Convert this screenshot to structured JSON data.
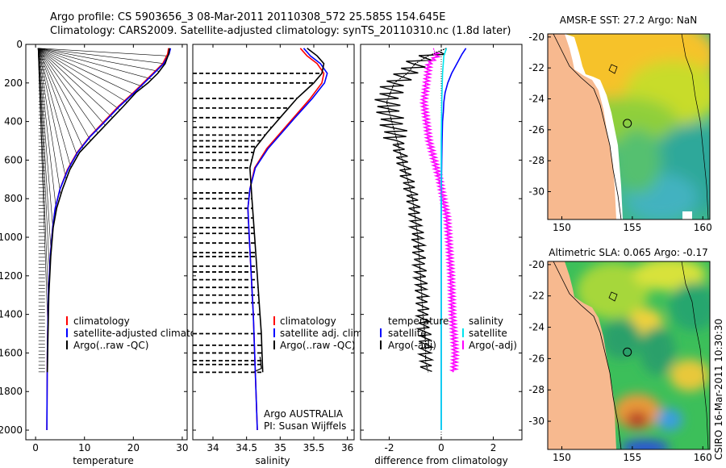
{
  "title": {
    "line1": "Argo profile: CS 5903656_3 08-Mar-2011 20110308_572 25.585S 154.645E",
    "line2": "Climatology: CARS2009. Satellite-adjusted climatology: synTS_20110310.nc (1.8d later)"
  },
  "side_label": "CSIRO 16-Mar-2011 10:30:30",
  "chart_data": [
    {
      "type": "line",
      "name": "temperature-profile",
      "xlabel": "temperature",
      "ylabel": "",
      "xlim": [
        -2,
        31
      ],
      "ylim": [
        2050,
        0
      ],
      "xticks": [
        0,
        10,
        20,
        30
      ],
      "yticks": [
        0,
        200,
        400,
        600,
        800,
        1000,
        1200,
        1400,
        1600,
        1800,
        2000
      ],
      "legend": [
        "climatology",
        "satellite-adjusted climatology",
        "Argo(..raw -QC)"
      ],
      "colors": {
        "climatology": "#ff0000",
        "satellite": "#0000ff",
        "argo": "#000000"
      },
      "series": [
        {
          "name": "climatology",
          "x": [
            27.2,
            27.0,
            26.0,
            24.0,
            22.0,
            20.0,
            17.0,
            14.0,
            11.0,
            8.5,
            6.5,
            5.0,
            4.0,
            3.5,
            3.0,
            2.6,
            2.4,
            2.3
          ],
          "y": [
            20,
            50,
            100,
            150,
            200,
            250,
            320,
            400,
            480,
            560,
            650,
            750,
            850,
            950,
            1100,
            1300,
            1600,
            2000
          ]
        },
        {
          "name": "satellite-adjusted climatology",
          "x": [
            27.6,
            27.3,
            26.2,
            24.2,
            22.2,
            20.2,
            17.2,
            14.2,
            11.1,
            8.6,
            6.6,
            5.0,
            4.0,
            3.5,
            3.0,
            2.6,
            2.4,
            2.3
          ],
          "y": [
            20,
            50,
            100,
            150,
            200,
            250,
            320,
            400,
            480,
            560,
            650,
            750,
            850,
            950,
            1100,
            1300,
            1600,
            2000
          ]
        },
        {
          "name": "Argo(..raw -QC)",
          "x": [
            27.4,
            27.2,
            26.5,
            25.0,
            23.0,
            20.5,
            18.0,
            15.0,
            12.0,
            9.0,
            7.0,
            5.5,
            4.3,
            3.6,
            3.1,
            2.7,
            2.5,
            2.4
          ],
          "y": [
            20,
            50,
            100,
            150,
            200,
            250,
            320,
            400,
            480,
            560,
            650,
            750,
            850,
            950,
            1100,
            1300,
            1550,
            1700
          ]
        }
      ]
    },
    {
      "type": "line",
      "name": "salinity-profile",
      "xlabel": "salinity",
      "ylabel": "",
      "xlim": [
        33.7,
        36.1
      ],
      "ylim": [
        2050,
        0
      ],
      "xticks": [
        34,
        34.5,
        35,
        35.5,
        36
      ],
      "yticks": [
        0,
        200,
        400,
        600,
        800,
        1000,
        1200,
        1400,
        1600,
        1800,
        2000
      ],
      "legend": [
        "climatology",
        "satellite adj. clim.",
        "Argo(..raw -QC)"
      ],
      "annotation": [
        "Argo AUSTRALIA",
        "PI: Susan Wijffels"
      ],
      "colors": {
        "climatology": "#ff0000",
        "satellite": "#0000ff",
        "argo": "#000000"
      },
      "series": [
        {
          "name": "climatology",
          "x": [
            35.3,
            35.4,
            35.55,
            35.65,
            35.62,
            35.45,
            35.2,
            35.0,
            34.8,
            34.62,
            34.55,
            34.52,
            34.54,
            34.57,
            34.6,
            34.63,
            34.66
          ],
          "y": [
            20,
            60,
            100,
            150,
            200,
            280,
            380,
            460,
            540,
            640,
            750,
            850,
            1000,
            1200,
            1400,
            1700,
            2000
          ]
        },
        {
          "name": "satellite adj. clim.",
          "x": [
            35.35,
            35.45,
            35.6,
            35.7,
            35.66,
            35.48,
            35.22,
            35.02,
            34.82,
            34.63,
            34.55,
            34.52,
            34.54,
            34.57,
            34.6,
            34.63,
            34.66
          ],
          "y": [
            20,
            60,
            100,
            150,
            200,
            280,
            380,
            460,
            540,
            640,
            750,
            850,
            1000,
            1200,
            1400,
            1700,
            2000
          ]
        },
        {
          "name": "Argo(..raw -QC)",
          "x": [
            35.4,
            35.55,
            35.65,
            35.62,
            35.5,
            35.25,
            35.0,
            34.8,
            34.62,
            34.55,
            34.58,
            34.62,
            34.66,
            34.7,
            34.72,
            34.73,
            34.74
          ],
          "y": [
            20,
            60,
            100,
            150,
            200,
            280,
            380,
            460,
            540,
            640,
            800,
            1000,
            1200,
            1400,
            1500,
            1600,
            1700
          ]
        }
      ]
    },
    {
      "type": "line",
      "name": "difference-from-climatology",
      "xlabel": "difference from climatology",
      "ylabel": "",
      "xlim": [
        -3.1,
        3.1
      ],
      "ylim": [
        2050,
        0
      ],
      "xticks": [
        -2,
        0,
        2
      ],
      "yticks": [
        0,
        200,
        400,
        600,
        800,
        1000,
        1200,
        1400,
        1600,
        1800,
        2000
      ],
      "legend_left": {
        "header": "temperature",
        "items": [
          "satellite",
          "Argo(-adj)"
        ]
      },
      "legend_right": {
        "header": "salinity",
        "items": [
          "satellite",
          "Argo(-adj)"
        ]
      },
      "colors": {
        "temp_satellite": "#0000ff",
        "temp_argo": "#000000",
        "sal_satellite": "#00e5ee",
        "sal_argo": "#ff00ff"
      },
      "series": [
        {
          "name": "temperature satellite",
          "x": [
            0.95,
            0.8,
            0.6,
            0.4,
            0.25,
            0.15,
            0.1,
            0.08,
            0.05,
            0.03,
            0.02,
            0.0,
            0.0,
            0.0,
            0.0,
            0.0
          ],
          "y": [
            20,
            50,
            100,
            150,
            200,
            250,
            300,
            350,
            400,
            500,
            600,
            800,
            1000,
            1400,
            1800,
            2000
          ]
        },
        {
          "name": "temperature Argo(-adj)",
          "x": [
            0.2,
            -0.5,
            -1.0,
            -1.3,
            -1.8,
            -2.1,
            -1.9,
            -1.7,
            -1.5,
            -1.3,
            -1.1,
            -0.9,
            -0.8,
            -0.7,
            -0.6,
            -0.6,
            -0.5
          ],
          "y": [
            20,
            60,
            100,
            150,
            200,
            300,
            400,
            500,
            600,
            700,
            800,
            1000,
            1200,
            1400,
            1550,
            1650,
            1700
          ]
        },
        {
          "name": "salinity satellite",
          "x": [
            0.2,
            0.1,
            0.05,
            0.02,
            0.0,
            0.0,
            0.0,
            0.0,
            0.0
          ],
          "y": [
            20,
            60,
            150,
            300,
            500,
            800,
            1200,
            1600,
            2000
          ]
        },
        {
          "name": "salinity Argo(-adj)",
          "x": [
            -0.3,
            -0.2,
            -0.5,
            -0.6,
            -0.7,
            -0.6,
            -0.5,
            -0.3,
            -0.1,
            0.05,
            0.2,
            0.25,
            0.35,
            0.4,
            0.45,
            0.5,
            0.45
          ],
          "y": [
            20,
            60,
            100,
            200,
            300,
            400,
            500,
            600,
            700,
            800,
            900,
            1000,
            1200,
            1400,
            1500,
            1600,
            1700
          ]
        }
      ]
    },
    {
      "type": "heatmap",
      "name": "sst-map",
      "title": "AMSR-E SST: 27.2 Argo: NaN",
      "xlim": [
        149,
        160.5
      ],
      "ylim": [
        -31.8,
        -19.8
      ],
      "xticks": [
        150,
        155,
        160
      ],
      "yticks": [
        -20,
        -22,
        -24,
        -26,
        -28,
        -30
      ],
      "float_position": {
        "lon": 154.645,
        "lat": -25.585
      }
    },
    {
      "type": "heatmap",
      "name": "sla-map",
      "title": "Altimetric SLA: 0.065 Argo: -0.17",
      "xlim": [
        149,
        160.5
      ],
      "ylim": [
        -31.8,
        -19.8
      ],
      "xticks": [
        150,
        155,
        160
      ],
      "yticks": [
        -20,
        -22,
        -24,
        -26,
        -28,
        -30
      ],
      "float_position": {
        "lon": 154.645,
        "lat": -25.585
      }
    }
  ]
}
